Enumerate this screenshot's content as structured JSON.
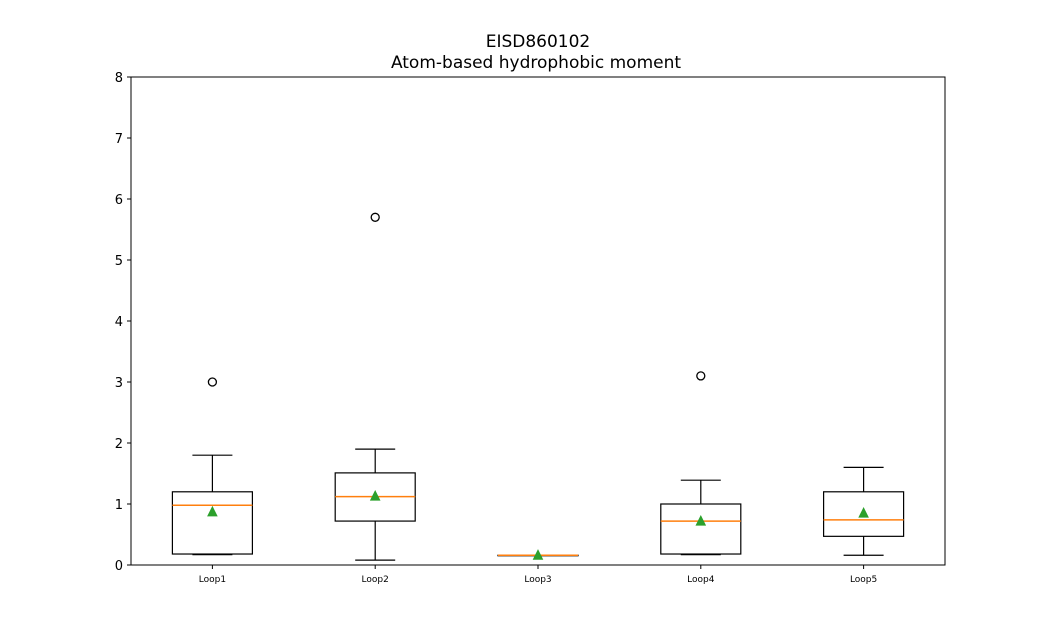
{
  "chart_data": {
    "type": "box",
    "title": "EISD860102",
    "subtitle": "Atom-based hydrophobic moment",
    "xlabel": "",
    "ylabel": "",
    "ylim": [
      0,
      8
    ],
    "yticks": [
      "0",
      "1",
      "2",
      "3",
      "4",
      "5",
      "6",
      "7",
      "8"
    ],
    "grid": false,
    "categories": [
      "Loop1",
      "Loop2",
      "Loop3",
      "Loop4",
      "Loop5"
    ],
    "boxes": [
      {
        "category": "Loop1",
        "whisker_low": 0.17,
        "q1": 0.18,
        "median": 0.98,
        "q3": 1.2,
        "whisker_high": 1.8,
        "mean": 0.87,
        "outliers": [
          3.0
        ]
      },
      {
        "category": "Loop2",
        "whisker_low": 0.08,
        "q1": 0.72,
        "median": 1.12,
        "q3": 1.51,
        "whisker_high": 1.9,
        "mean": 1.13,
        "outliers": [
          5.7
        ]
      },
      {
        "category": "Loop3",
        "whisker_low": 0.16,
        "q1": 0.16,
        "median": 0.16,
        "q3": 0.16,
        "whisker_high": 0.16,
        "mean": 0.16,
        "outliers": []
      },
      {
        "category": "Loop4",
        "whisker_low": 0.17,
        "q1": 0.18,
        "median": 0.72,
        "q3": 1.0,
        "whisker_high": 1.39,
        "mean": 0.72,
        "outliers": [
          3.1
        ]
      },
      {
        "category": "Loop5",
        "whisker_low": 0.16,
        "q1": 0.47,
        "median": 0.74,
        "q3": 1.2,
        "whisker_high": 1.6,
        "mean": 0.85,
        "outliers": []
      }
    ],
    "colors": {
      "box": "#000000",
      "median": "#ff7f0e",
      "mean": "#2ca02c",
      "outlier": "#000000"
    }
  }
}
